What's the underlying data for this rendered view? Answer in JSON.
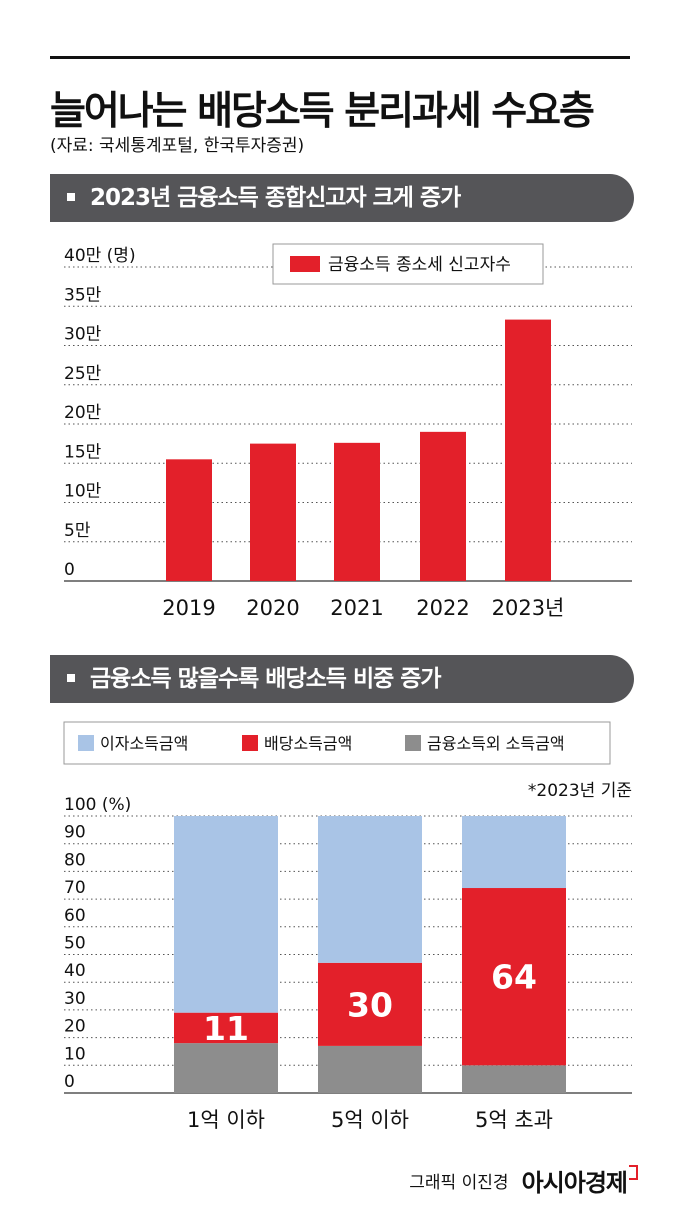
{
  "header": {
    "title": "늘어나는 배당소득 분리과세 수요층",
    "source": "(자료: 국세통계포털, 한국투자증권)"
  },
  "colors": {
    "red": "#e3202a",
    "light_blue": "#a9c4e6",
    "gray": "#8d8d8d",
    "banner": "#555558"
  },
  "chart_data": [
    {
      "type": "bar",
      "section_title": "2023년 금융소득 종합신고자 크게 증가",
      "categories": [
        "2019",
        "2020",
        "2021",
        "2022",
        "2023년"
      ],
      "series": [
        {
          "name": "금융소득 종소세 신고자수",
          "values": [
            155000,
            175000,
            176000,
            190000,
            333000
          ]
        }
      ],
      "y_ticks": [
        0,
        50000,
        100000,
        150000,
        200000,
        250000,
        300000,
        350000,
        400000
      ],
      "y_tick_labels": [
        "0",
        "5만",
        "10만",
        "15만",
        "20만",
        "25만",
        "30만",
        "35만",
        "40만"
      ],
      "ylabel": "(명)",
      "ylim": [
        0,
        400000
      ],
      "grid": true,
      "legend": "top-center"
    },
    {
      "type": "bar",
      "stacked": true,
      "section_title": "금융소득 많을수록 배당소득 비중 증가",
      "note": "*2023년 기준",
      "categories": [
        "1억 이하",
        "5억 이하",
        "5억 초과"
      ],
      "series": [
        {
          "name": "금융소득외 소득금액",
          "values": [
            18,
            17,
            10
          ]
        },
        {
          "name": "배당소득금액",
          "values": [
            11,
            30,
            64
          ]
        },
        {
          "name": "이자소득금액",
          "values": [
            71,
            53,
            26
          ]
        }
      ],
      "data_labels": [
        "11",
        "30",
        "64"
      ],
      "y_ticks": [
        0,
        10,
        20,
        30,
        40,
        50,
        60,
        70,
        80,
        90,
        100
      ],
      "ylabel": "(%)",
      "ylim": [
        0,
        100
      ],
      "grid": true,
      "legend": "top-left",
      "legend_order": [
        "이자소득금액",
        "배당소득금액",
        "금융소득외 소득금액"
      ]
    }
  ],
  "footer": {
    "credit": "그래픽 이진경",
    "brand": "아시아경제"
  }
}
